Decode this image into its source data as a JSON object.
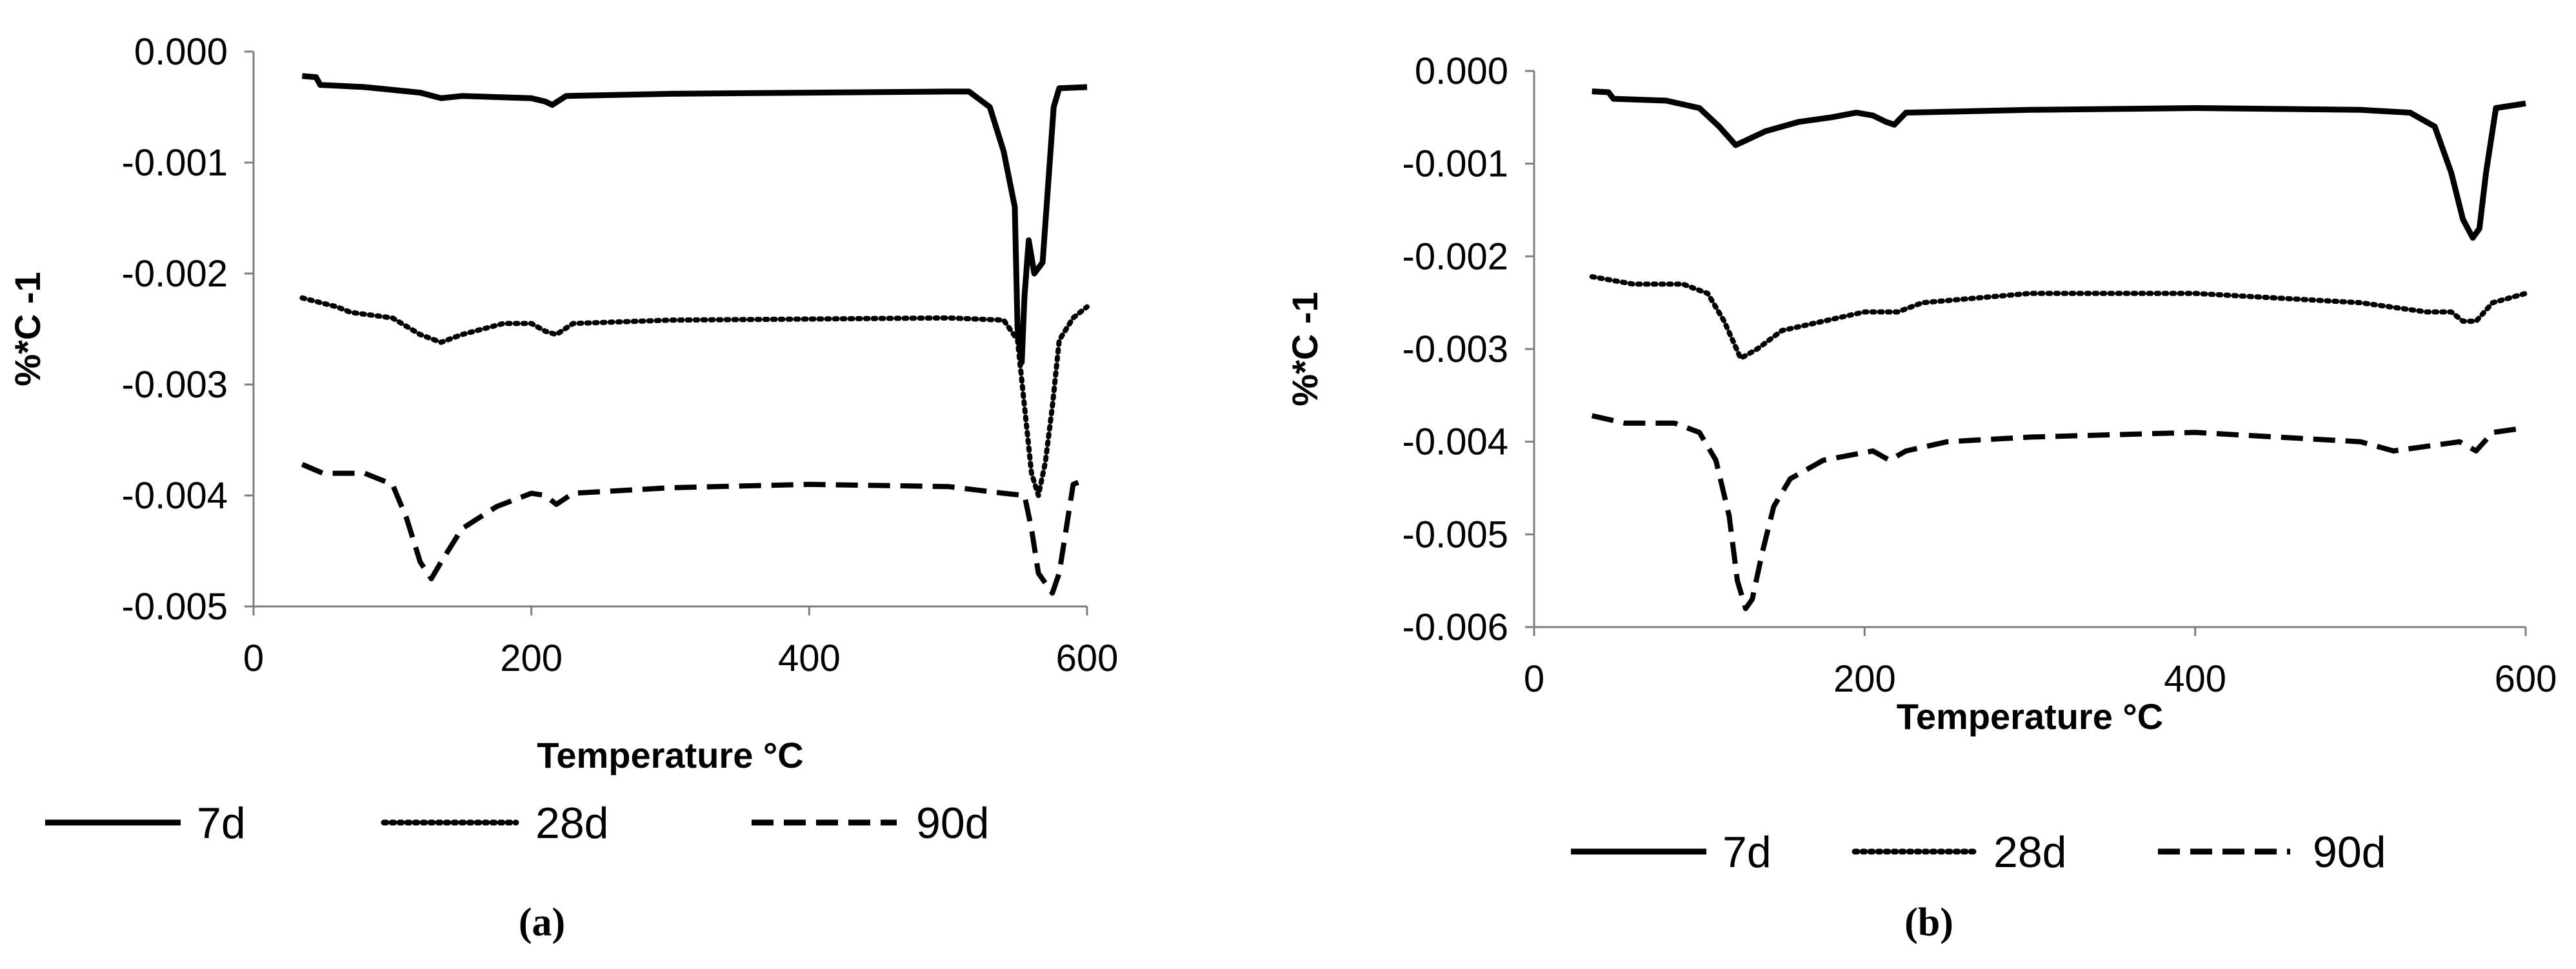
{
  "chart_data": [
    {
      "type": "line",
      "panel_label": "(a)",
      "xlabel": "Temperature °C",
      "ylabel": "%*C -1",
      "xlim": [
        0,
        600
      ],
      "ylim": [
        -0.005,
        0.0
      ],
      "xticks": [
        "0",
        "200",
        "400",
        "600"
      ],
      "yticks": [
        "0.000",
        "-0.001",
        "-0.002",
        "-0.003",
        "-0.004",
        "-0.005"
      ],
      "grid": false,
      "legend_position": "bottom",
      "series": [
        {
          "name": "7d",
          "style": "solid",
          "points": [
            [
              35,
              -0.00022
            ],
            [
              45,
              -0.00023
            ],
            [
              48,
              -0.0003
            ],
            [
              80,
              -0.00032
            ],
            [
              120,
              -0.00037
            ],
            [
              135,
              -0.00042
            ],
            [
              150,
              -0.0004
            ],
            [
              200,
              -0.00042
            ],
            [
              210,
              -0.00045
            ],
            [
              215,
              -0.00048
            ],
            [
              225,
              -0.0004
            ],
            [
              300,
              -0.00038
            ],
            [
              400,
              -0.00037
            ],
            [
              500,
              -0.00036
            ],
            [
              515,
              -0.00036
            ],
            [
              530,
              -0.0005
            ],
            [
              540,
              -0.0009
            ],
            [
              548,
              -0.0014
            ],
            [
              550,
              -0.0025
            ],
            [
              553,
              -0.0028
            ],
            [
              555,
              -0.0022
            ],
            [
              558,
              -0.0017
            ],
            [
              562,
              -0.002
            ],
            [
              568,
              -0.0019
            ],
            [
              572,
              -0.0012
            ],
            [
              576,
              -0.0005
            ],
            [
              580,
              -0.00033
            ],
            [
              600,
              -0.00032
            ]
          ]
        },
        {
          "name": "28d",
          "style": "dotted",
          "points": [
            [
              35,
              -0.00222
            ],
            [
              60,
              -0.0023
            ],
            [
              70,
              -0.00235
            ],
            [
              100,
              -0.0024
            ],
            [
              120,
              -0.00255
            ],
            [
              135,
              -0.00262
            ],
            [
              150,
              -0.00255
            ],
            [
              180,
              -0.00245
            ],
            [
              200,
              -0.00245
            ],
            [
              210,
              -0.00252
            ],
            [
              218,
              -0.00255
            ],
            [
              230,
              -0.00245
            ],
            [
              300,
              -0.00242
            ],
            [
              400,
              -0.00241
            ],
            [
              500,
              -0.0024
            ],
            [
              540,
              -0.00242
            ],
            [
              550,
              -0.0026
            ],
            [
              555,
              -0.0032
            ],
            [
              560,
              -0.0038
            ],
            [
              565,
              -0.004
            ],
            [
              570,
              -0.0037
            ],
            [
              575,
              -0.0032
            ],
            [
              580,
              -0.0026
            ],
            [
              590,
              -0.0024
            ],
            [
              600,
              -0.0023
            ]
          ]
        },
        {
          "name": "90d",
          "style": "dashed",
          "points": [
            [
              35,
              -0.00372
            ],
            [
              50,
              -0.0038
            ],
            [
              80,
              -0.0038
            ],
            [
              100,
              -0.0039
            ],
            [
              110,
              -0.0042
            ],
            [
              120,
              -0.0046
            ],
            [
              128,
              -0.00475
            ],
            [
              135,
              -0.0046
            ],
            [
              150,
              -0.0043
            ],
            [
              175,
              -0.0041
            ],
            [
              200,
              -0.00398
            ],
            [
              210,
              -0.004
            ],
            [
              218,
              -0.00408
            ],
            [
              230,
              -0.00398
            ],
            [
              300,
              -0.00393
            ],
            [
              400,
              -0.0039
            ],
            [
              500,
              -0.00392
            ],
            [
              540,
              -0.00398
            ],
            [
              555,
              -0.004
            ],
            [
              560,
              -0.0043
            ],
            [
              565,
              -0.0047
            ],
            [
              575,
              -0.00488
            ],
            [
              580,
              -0.0047
            ],
            [
              585,
              -0.0043
            ],
            [
              590,
              -0.0039
            ],
            [
              600,
              -0.00385
            ]
          ]
        }
      ]
    },
    {
      "type": "line",
      "panel_label": "(b)",
      "xlabel": "Temperature °C",
      "ylabel": "%*C -1",
      "xlim": [
        0,
        600
      ],
      "ylim": [
        -0.006,
        0.0
      ],
      "xticks": [
        "0",
        "200",
        "400",
        "600"
      ],
      "yticks": [
        "0.000",
        "-0.001",
        "-0.002",
        "-0.003",
        "-0.004",
        "-0.005",
        "-0.006"
      ],
      "grid": false,
      "legend_position": "bottom",
      "series": [
        {
          "name": "7d",
          "style": "solid",
          "points": [
            [
              35,
              -0.00022
            ],
            [
              45,
              -0.00023
            ],
            [
              48,
              -0.0003
            ],
            [
              80,
              -0.00032
            ],
            [
              100,
              -0.0004
            ],
            [
              112,
              -0.0006
            ],
            [
              122,
              -0.0008
            ],
            [
              128,
              -0.00075
            ],
            [
              140,
              -0.00065
            ],
            [
              160,
              -0.00055
            ],
            [
              180,
              -0.0005
            ],
            [
              195,
              -0.00045
            ],
            [
              205,
              -0.00048
            ],
            [
              213,
              -0.00055
            ],
            [
              218,
              -0.00058
            ],
            [
              225,
              -0.00045
            ],
            [
              300,
              -0.00042
            ],
            [
              400,
              -0.0004
            ],
            [
              500,
              -0.00042
            ],
            [
              530,
              -0.00045
            ],
            [
              545,
              -0.0006
            ],
            [
              555,
              -0.0011
            ],
            [
              562,
              -0.0016
            ],
            [
              568,
              -0.0018
            ],
            [
              572,
              -0.0017
            ],
            [
              576,
              -0.0011
            ],
            [
              582,
              -0.0004
            ],
            [
              600,
              -0.00035
            ]
          ]
        },
        {
          "name": "28d",
          "style": "dotted",
          "points": [
            [
              35,
              -0.00222
            ],
            [
              60,
              -0.0023
            ],
            [
              90,
              -0.0023
            ],
            [
              105,
              -0.0024
            ],
            [
              115,
              -0.0027
            ],
            [
              125,
              -0.0031
            ],
            [
              135,
              -0.003
            ],
            [
              150,
              -0.0028
            ],
            [
              175,
              -0.0027
            ],
            [
              200,
              -0.0026
            ],
            [
              213,
              -0.0026
            ],
            [
              220,
              -0.0026
            ],
            [
              235,
              -0.0025
            ],
            [
              300,
              -0.0024
            ],
            [
              400,
              -0.0024
            ],
            [
              500,
              -0.0025
            ],
            [
              540,
              -0.0026
            ],
            [
              555,
              -0.0026
            ],
            [
              562,
              -0.0027
            ],
            [
              570,
              -0.0027
            ],
            [
              580,
              -0.0025
            ],
            [
              600,
              -0.0024
            ]
          ]
        },
        {
          "name": "90d",
          "style": "dashed",
          "points": [
            [
              35,
              -0.00372
            ],
            [
              55,
              -0.0038
            ],
            [
              85,
              -0.0038
            ],
            [
              100,
              -0.0039
            ],
            [
              110,
              -0.0042
            ],
            [
              118,
              -0.0048
            ],
            [
              123,
              -0.0055
            ],
            [
              128,
              -0.0058
            ],
            [
              132,
              -0.0057
            ],
            [
              138,
              -0.0052
            ],
            [
              145,
              -0.0047
            ],
            [
              155,
              -0.0044
            ],
            [
              175,
              -0.0042
            ],
            [
              205,
              -0.0041
            ],
            [
              215,
              -0.0042
            ],
            [
              225,
              -0.0041
            ],
            [
              250,
              -0.004
            ],
            [
              300,
              -0.00395
            ],
            [
              400,
              -0.0039
            ],
            [
              500,
              -0.004
            ],
            [
              520,
              -0.0041
            ],
            [
              560,
              -0.004
            ],
            [
              570,
              -0.0041
            ],
            [
              580,
              -0.0039
            ],
            [
              600,
              -0.00385
            ]
          ]
        }
      ]
    }
  ]
}
